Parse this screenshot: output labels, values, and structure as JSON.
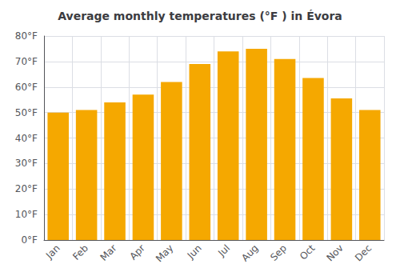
{
  "chart_data": {
    "type": "bar",
    "title": "Average monthly temperatures (°F ) in Évora",
    "categories": [
      "Jan",
      "Feb",
      "Mar",
      "Apr",
      "May",
      "Jun",
      "Jul",
      "Aug",
      "Sep",
      "Oct",
      "Nov",
      "Dec"
    ],
    "values": [
      50,
      51,
      54,
      57,
      62,
      69,
      74,
      75,
      71,
      63.5,
      55.5,
      51
    ],
    "color": "#F5A800",
    "ylim": [
      0,
      80
    ],
    "yticks": [
      {
        "value": 0,
        "label": "0°F"
      },
      {
        "value": 10,
        "label": "10°F"
      },
      {
        "value": 20,
        "label": "20°F"
      },
      {
        "value": 30,
        "label": "30°F"
      },
      {
        "value": 40,
        "label": "40°F"
      },
      {
        "value": 50,
        "label": "50°F"
      },
      {
        "value": 60,
        "label": "60°F"
      },
      {
        "value": 70,
        "label": "70°F"
      },
      {
        "value": 80,
        "label": "80°F"
      }
    ],
    "grid": true
  }
}
